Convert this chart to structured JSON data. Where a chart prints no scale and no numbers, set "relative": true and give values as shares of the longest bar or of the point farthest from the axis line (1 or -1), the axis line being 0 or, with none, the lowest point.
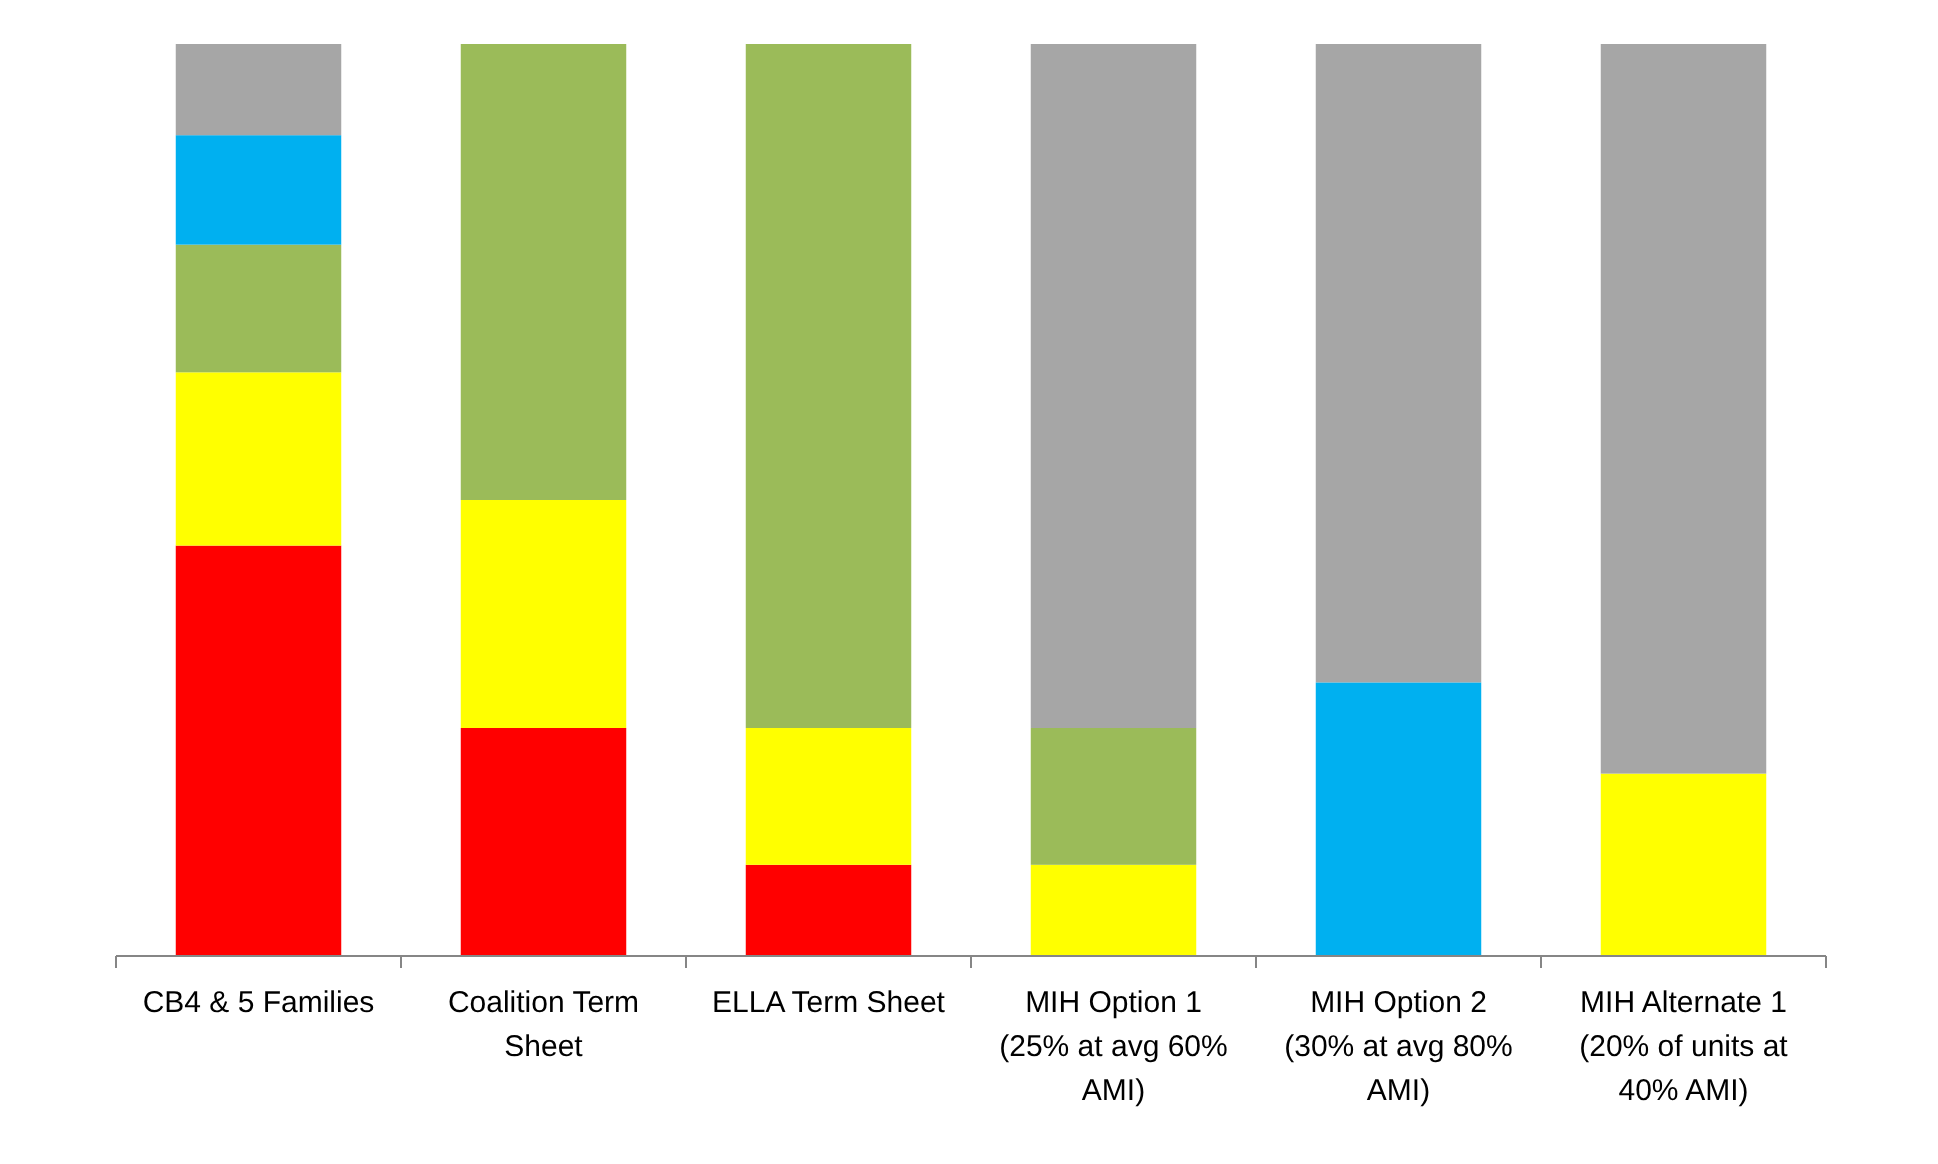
{
  "chart_data": {
    "type": "bar",
    "stacked": true,
    "relative": true,
    "categories": [
      "CB4 & 5 Families",
      "Coalition Term Sheet",
      "ELLA Term Sheet",
      "MIH Option 1 (25% at avg 60% AMI)",
      "MIH Option 2 (30% at avg 80% AMI)",
      "MIH Alternate 1 (20% of units at 40% AMI)"
    ],
    "series": [
      {
        "color": "#ff0000",
        "values": [
          0.45,
          0.25,
          0.1,
          0,
          0,
          0
        ]
      },
      {
        "color": "#ffff00",
        "values": [
          0.19,
          0.25,
          0.15,
          0.1,
          0,
          0.2
        ]
      },
      {
        "color": "#9bbb59",
        "values": [
          0.14,
          0.5,
          0.75,
          0.15,
          0,
          0
        ]
      },
      {
        "color": "#00b0f0",
        "values": [
          0.12,
          0,
          0,
          0,
          0.3,
          0
        ]
      },
      {
        "color": "#a6a6a6",
        "values": [
          0.1,
          0,
          0,
          0.75,
          0.7,
          0.8
        ]
      }
    ]
  }
}
